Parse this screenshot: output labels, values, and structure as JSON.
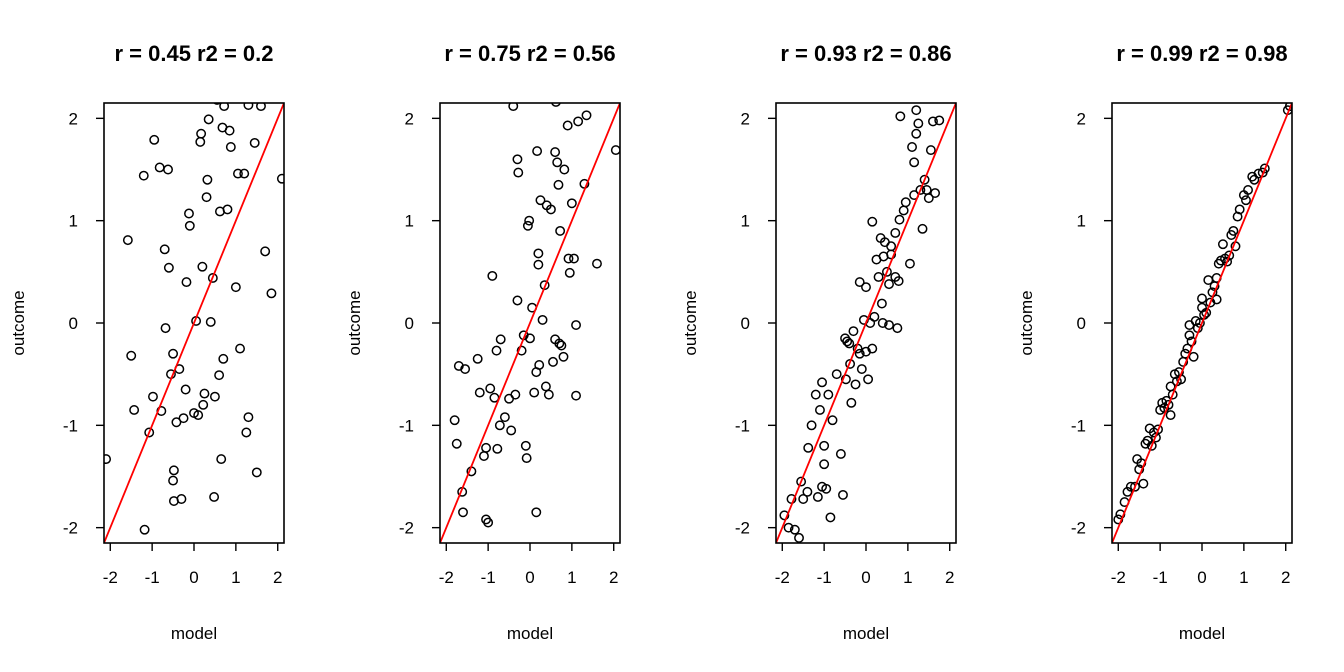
{
  "chart_data": [
    {
      "type": "scatter",
      "title": "r = 0.45  r2 =  0.2",
      "xlabel": "model",
      "ylabel": "outcome",
      "xlim": [
        -2.15,
        2.15
      ],
      "ylim": [
        -2.15,
        2.15
      ],
      "xticks": [
        -2,
        -1,
        0,
        1,
        2
      ],
      "yticks": [
        -2,
        -1,
        0,
        1,
        2
      ],
      "xtick_labels": [
        "-2",
        "-1",
        "0",
        "1",
        "2"
      ],
      "ytick_labels": [
        "-2",
        "-1",
        "0",
        "1",
        "2"
      ],
      "fit_line": {
        "slope": 1,
        "intercept": 0,
        "color": "#ff0000"
      },
      "points": [
        [
          -2.1,
          -1.33
        ],
        [
          -1.58,
          0.81
        ],
        [
          -1.5,
          -0.32
        ],
        [
          -1.43,
          -0.85
        ],
        [
          -1.2,
          1.44
        ],
        [
          -1.18,
          -2.02
        ],
        [
          -1.07,
          -1.07
        ],
        [
          -0.98,
          -0.72
        ],
        [
          -0.95,
          1.79
        ],
        [
          -0.82,
          1.52
        ],
        [
          -0.78,
          -0.86
        ],
        [
          -0.7,
          0.72
        ],
        [
          -0.68,
          -0.05
        ],
        [
          -0.62,
          1.5
        ],
        [
          -0.6,
          0.54
        ],
        [
          -0.55,
          -0.5
        ],
        [
          -0.5,
          -0.3
        ],
        [
          -0.5,
          -1.54
        ],
        [
          -0.48,
          -1.44
        ],
        [
          -0.48,
          -1.74
        ],
        [
          -0.42,
          -0.97
        ],
        [
          -0.35,
          -0.45
        ],
        [
          -0.3,
          -1.72
        ],
        [
          -0.25,
          -0.93
        ],
        [
          -0.2,
          -0.65
        ],
        [
          -0.18,
          0.4
        ],
        [
          -0.12,
          1.07
        ],
        [
          -0.1,
          0.95
        ],
        [
          0.0,
          -0.88
        ],
        [
          0.05,
          0.02
        ],
        [
          0.1,
          -0.9
        ],
        [
          0.15,
          1.77
        ],
        [
          0.17,
          1.85
        ],
        [
          0.2,
          0.55
        ],
        [
          0.22,
          -0.8
        ],
        [
          0.25,
          -0.69
        ],
        [
          0.3,
          1.23
        ],
        [
          0.32,
          1.4
        ],
        [
          0.35,
          1.99
        ],
        [
          0.4,
          0.01
        ],
        [
          0.45,
          0.44
        ],
        [
          0.48,
          -1.7
        ],
        [
          0.5,
          -0.72
        ],
        [
          0.55,
          2.18
        ],
        [
          0.6,
          -0.51
        ],
        [
          0.62,
          1.09
        ],
        [
          0.65,
          -1.33
        ],
        [
          0.68,
          1.91
        ],
        [
          0.7,
          -0.35
        ],
        [
          0.72,
          2.12
        ],
        [
          0.8,
          1.11
        ],
        [
          0.85,
          1.88
        ],
        [
          0.88,
          1.72
        ],
        [
          1.0,
          0.35
        ],
        [
          1.05,
          1.46
        ],
        [
          1.1,
          -0.25
        ],
        [
          1.2,
          1.46
        ],
        [
          1.25,
          -1.07
        ],
        [
          1.3,
          -0.92
        ],
        [
          1.3,
          2.13
        ],
        [
          1.45,
          1.76
        ],
        [
          1.5,
          -1.46
        ],
        [
          1.6,
          2.12
        ],
        [
          1.7,
          0.7
        ],
        [
          1.85,
          0.29
        ],
        [
          2.1,
          1.41
        ]
      ]
    },
    {
      "type": "scatter",
      "title": "r = 0.75  r2 =  0.56",
      "xlabel": "model",
      "ylabel": "outcome",
      "xlim": [
        -2.15,
        2.15
      ],
      "ylim": [
        -2.15,
        2.15
      ],
      "xticks": [
        -2,
        -1,
        0,
        1,
        2
      ],
      "yticks": [
        -2,
        -1,
        0,
        1,
        2
      ],
      "xtick_labels": [
        "-2",
        "-1",
        "0",
        "1",
        "2"
      ],
      "ytick_labels": [
        "-2",
        "-1",
        "0",
        "1",
        "2"
      ],
      "fit_line": {
        "slope": 1,
        "intercept": 0,
        "color": "#ff0000"
      },
      "points": [
        [
          -1.8,
          -0.95
        ],
        [
          -1.75,
          -1.18
        ],
        [
          -1.7,
          -0.42
        ],
        [
          -1.62,
          -1.65
        ],
        [
          -1.6,
          -1.85
        ],
        [
          -1.55,
          -0.45
        ],
        [
          -1.4,
          -1.45
        ],
        [
          -1.25,
          -0.35
        ],
        [
          -1.2,
          -0.68
        ],
        [
          -1.1,
          -1.3
        ],
        [
          -1.05,
          -1.22
        ],
        [
          -1.05,
          -1.92
        ],
        [
          -1.0,
          -1.95
        ],
        [
          -0.95,
          -0.64
        ],
        [
          -0.9,
          0.46
        ],
        [
          -0.85,
          -0.73
        ],
        [
          -0.8,
          -0.27
        ],
        [
          -0.78,
          -1.23
        ],
        [
          -0.72,
          -1.0
        ],
        [
          -0.7,
          -0.16
        ],
        [
          -0.6,
          -0.92
        ],
        [
          -0.5,
          -0.74
        ],
        [
          -0.45,
          -1.05
        ],
        [
          -0.4,
          2.12
        ],
        [
          -0.35,
          -0.7
        ],
        [
          -0.3,
          1.6
        ],
        [
          -0.28,
          1.47
        ],
        [
          -0.3,
          0.22
        ],
        [
          -0.2,
          -0.27
        ],
        [
          -0.15,
          -0.12
        ],
        [
          -0.1,
          -1.2
        ],
        [
          -0.08,
          -1.32
        ],
        [
          -0.05,
          0.95
        ],
        [
          -0.02,
          1.0
        ],
        [
          0.0,
          -0.15
        ],
        [
          0.05,
          0.15
        ],
        [
          0.1,
          -0.68
        ],
        [
          0.15,
          -0.48
        ],
        [
          0.17,
          1.68
        ],
        [
          0.2,
          0.57
        ],
        [
          0.2,
          0.68
        ],
        [
          0.22,
          -0.41
        ],
        [
          0.25,
          1.2
        ],
        [
          0.3,
          0.03
        ],
        [
          0.35,
          0.37
        ],
        [
          0.38,
          -0.62
        ],
        [
          0.4,
          1.15
        ],
        [
          0.45,
          -0.7
        ],
        [
          0.5,
          1.11
        ],
        [
          0.55,
          -0.38
        ],
        [
          0.6,
          1.67
        ],
        [
          0.6,
          -0.16
        ],
        [
          0.62,
          2.16
        ],
        [
          0.65,
          1.57
        ],
        [
          0.68,
          1.35
        ],
        [
          0.7,
          -0.2
        ],
        [
          0.72,
          0.9
        ],
        [
          0.75,
          -0.22
        ],
        [
          0.8,
          -0.33
        ],
        [
          0.82,
          1.5
        ],
        [
          0.9,
          1.93
        ],
        [
          0.92,
          0.63
        ],
        [
          0.95,
          0.49
        ],
        [
          1.0,
          1.17
        ],
        [
          1.05,
          0.63
        ],
        [
          1.1,
          -0.02
        ],
        [
          1.1,
          -0.71
        ],
        [
          1.15,
          1.97
        ],
        [
          1.3,
          1.36
        ],
        [
          1.35,
          2.03
        ],
        [
          1.6,
          0.58
        ],
        [
          2.05,
          1.69
        ],
        [
          0.15,
          -1.85
        ]
      ]
    },
    {
      "type": "scatter",
      "title": "r = 0.93  r2 =  0.86",
      "xlabel": "model",
      "ylabel": "outcome",
      "xlim": [
        -2.15,
        2.15
      ],
      "ylim": [
        -2.15,
        2.15
      ],
      "xticks": [
        -2,
        -1,
        0,
        1,
        2
      ],
      "yticks": [
        -2,
        -1,
        0,
        1,
        2
      ],
      "xtick_labels": [
        "-2",
        "-1",
        "0",
        "1",
        "2"
      ],
      "ytick_labels": [
        "-2",
        "-1",
        "0",
        "1",
        "2"
      ],
      "fit_line": {
        "slope": 1,
        "intercept": 0,
        "color": "#ff0000"
      },
      "points": [
        [
          -1.95,
          -1.88
        ],
        [
          -1.85,
          -2.0
        ],
        [
          -1.78,
          -1.72
        ],
        [
          -1.7,
          -2.02
        ],
        [
          -1.6,
          -2.1
        ],
        [
          -1.55,
          -1.55
        ],
        [
          -1.5,
          -1.72
        ],
        [
          -1.4,
          -1.65
        ],
        [
          -1.38,
          -1.22
        ],
        [
          -1.3,
          -1.0
        ],
        [
          -1.2,
          -0.7
        ],
        [
          -1.15,
          -1.7
        ],
        [
          -1.1,
          -0.85
        ],
        [
          -1.05,
          -0.58
        ],
        [
          -1.05,
          -1.6
        ],
        [
          -1.0,
          -1.38
        ],
        [
          -1.0,
          -1.2
        ],
        [
          -0.95,
          -1.62
        ],
        [
          -0.9,
          -0.7
        ],
        [
          -0.85,
          -1.9
        ],
        [
          -0.8,
          -0.95
        ],
        [
          -0.7,
          -0.5
        ],
        [
          -0.6,
          -1.28
        ],
        [
          -0.55,
          -1.68
        ],
        [
          -0.5,
          -0.15
        ],
        [
          -0.48,
          -0.55
        ],
        [
          -0.4,
          -0.2
        ],
        [
          -0.38,
          -0.4
        ],
        [
          -0.35,
          -0.78
        ],
        [
          -0.3,
          -0.08
        ],
        [
          -0.25,
          -0.6
        ],
        [
          -0.2,
          -0.25
        ],
        [
          -0.15,
          -0.3
        ],
        [
          -0.15,
          0.4
        ],
        [
          -0.1,
          -0.45
        ],
        [
          -0.05,
          0.03
        ],
        [
          0.0,
          0.35
        ],
        [
          0.0,
          -0.28
        ],
        [
          0.05,
          -0.55
        ],
        [
          0.1,
          0.0
        ],
        [
          0.15,
          0.99
        ],
        [
          0.15,
          -0.25
        ],
        [
          0.2,
          0.06
        ],
        [
          0.25,
          0.62
        ],
        [
          0.3,
          0.45
        ],
        [
          0.35,
          0.83
        ],
        [
          0.38,
          0.19
        ],
        [
          0.4,
          0.0
        ],
        [
          0.42,
          0.65
        ],
        [
          0.45,
          0.79
        ],
        [
          0.5,
          0.5
        ],
        [
          0.55,
          0.38
        ],
        [
          0.55,
          -0.02
        ],
        [
          0.6,
          0.75
        ],
        [
          0.6,
          0.67
        ],
        [
          0.7,
          0.88
        ],
        [
          0.7,
          0.45
        ],
        [
          0.75,
          -0.05
        ],
        [
          0.78,
          0.41
        ],
        [
          0.8,
          1.01
        ],
        [
          0.82,
          2.02
        ],
        [
          0.9,
          1.1
        ],
        [
          0.95,
          1.18
        ],
        [
          1.05,
          0.58
        ],
        [
          1.1,
          1.72
        ],
        [
          1.15,
          1.57
        ],
        [
          1.15,
          1.25
        ],
        [
          1.2,
          1.85
        ],
        [
          1.2,
          2.08
        ],
        [
          1.25,
          1.95
        ],
        [
          1.3,
          1.3
        ],
        [
          1.35,
          0.92
        ],
        [
          1.4,
          1.4
        ],
        [
          1.45,
          1.3
        ],
        [
          1.5,
          1.22
        ],
        [
          1.55,
          1.69
        ],
        [
          1.6,
          1.97
        ],
        [
          1.65,
          1.27
        ],
        [
          1.75,
          1.98
        ],
        [
          -0.45,
          -0.18
        ]
      ]
    },
    {
      "type": "scatter",
      "title": "r = 0.99  r2 =  0.98",
      "xlabel": "model",
      "ylabel": "outcome",
      "xlim": [
        -2.15,
        2.15
      ],
      "ylim": [
        -2.15,
        2.15
      ],
      "xticks": [
        -2,
        -1,
        0,
        1,
        2
      ],
      "yticks": [
        -2,
        -1,
        0,
        1,
        2
      ],
      "xtick_labels": [
        "-2",
        "-1",
        "0",
        "1",
        "2"
      ],
      "ytick_labels": [
        "-2",
        "-1",
        "0",
        "1",
        "2"
      ],
      "fit_line": {
        "slope": 1,
        "intercept": 0,
        "color": "#ff0000"
      },
      "points": [
        [
          -2.0,
          -1.92
        ],
        [
          -1.95,
          -1.87
        ],
        [
          -1.85,
          -1.75
        ],
        [
          -1.78,
          -1.65
        ],
        [
          -1.7,
          -1.6
        ],
        [
          -1.6,
          -1.6
        ],
        [
          -1.55,
          -1.33
        ],
        [
          -1.5,
          -1.43
        ],
        [
          -1.45,
          -1.37
        ],
        [
          -1.4,
          -1.57
        ],
        [
          -1.35,
          -1.18
        ],
        [
          -1.3,
          -1.15
        ],
        [
          -1.25,
          -1.03
        ],
        [
          -1.2,
          -1.2
        ],
        [
          -1.15,
          -1.07
        ],
        [
          -1.1,
          -1.12
        ],
        [
          -1.05,
          -1.04
        ],
        [
          -1.0,
          -0.85
        ],
        [
          -0.95,
          -0.78
        ],
        [
          -0.9,
          -0.83
        ],
        [
          -0.85,
          -0.76
        ],
        [
          -0.8,
          -0.8
        ],
        [
          -0.75,
          -0.62
        ],
        [
          -0.7,
          -0.7
        ],
        [
          -0.65,
          -0.5
        ],
        [
          -0.6,
          -0.57
        ],
        [
          -0.55,
          -0.48
        ],
        [
          -0.5,
          -0.55
        ],
        [
          -0.45,
          -0.38
        ],
        [
          -0.4,
          -0.3
        ],
        [
          -0.35,
          -0.25
        ],
        [
          -0.3,
          -0.02
        ],
        [
          -0.25,
          -0.18
        ],
        [
          -0.2,
          -0.33
        ],
        [
          -0.15,
          0.02
        ],
        [
          -0.1,
          -0.05
        ],
        [
          -0.05,
          0.0
        ],
        [
          0.0,
          0.24
        ],
        [
          0.05,
          0.08
        ],
        [
          0.1,
          0.1
        ],
        [
          0.15,
          0.42
        ],
        [
          0.2,
          0.2
        ],
        [
          0.25,
          0.3
        ],
        [
          0.3,
          0.36
        ],
        [
          0.35,
          0.44
        ],
        [
          0.4,
          0.58
        ],
        [
          0.45,
          0.61
        ],
        [
          0.5,
          0.77
        ],
        [
          0.55,
          0.63
        ],
        [
          0.6,
          0.6
        ],
        [
          0.65,
          0.66
        ],
        [
          0.7,
          0.86
        ],
        [
          0.75,
          0.9
        ],
        [
          0.8,
          0.75
        ],
        [
          0.85,
          1.04
        ],
        [
          0.9,
          1.11
        ],
        [
          1.0,
          1.25
        ],
        [
          1.05,
          1.2
        ],
        [
          1.1,
          1.3
        ],
        [
          1.2,
          1.43
        ],
        [
          1.25,
          1.4
        ],
        [
          1.35,
          1.46
        ],
        [
          1.45,
          1.47
        ],
        [
          1.5,
          1.51
        ],
        [
          2.05,
          2.08
        ],
        [
          2.1,
          2.12
        ],
        [
          -0.3,
          -0.12
        ],
        [
          0.0,
          0.15
        ],
        [
          0.35,
          0.23
        ],
        [
          -0.75,
          -0.9
        ]
      ]
    }
  ]
}
